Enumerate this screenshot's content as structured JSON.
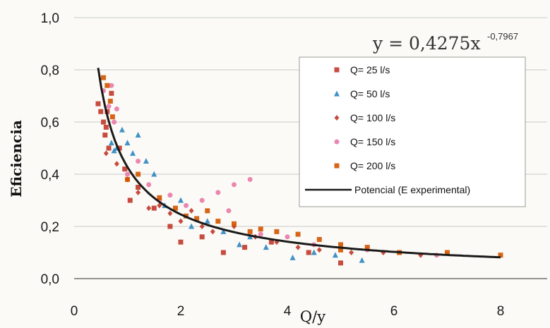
{
  "chart_data": {
    "type": "scatter",
    "xlabel": "Q/y",
    "ylabel": "Eficiencia",
    "xlim": [
      0,
      8.5
    ],
    "ylim": [
      0,
      1.0
    ],
    "x_ticks": [
      "0",
      "2",
      "4",
      "6",
      "8"
    ],
    "y_ticks": [
      "0,0",
      "0,2",
      "0,4",
      "0,6",
      "0,8",
      "1,0"
    ],
    "grid": "horizontal",
    "legend_position": "top-right",
    "equation": {
      "base": "y = 0,4275x",
      "exponent": "-0,7967"
    },
    "series": [
      {
        "name": "Q= 25 l/s",
        "marker": "square",
        "color": "#c0392b",
        "points": [
          [
            0.45,
            0.67
          ],
          [
            0.5,
            0.64
          ],
          [
            0.55,
            0.6
          ],
          [
            0.58,
            0.55
          ],
          [
            0.6,
            0.58
          ],
          [
            0.62,
            0.64
          ],
          [
            0.65,
            0.5
          ],
          [
            0.7,
            0.71
          ],
          [
            0.85,
            0.5
          ],
          [
            0.95,
            0.42
          ],
          [
            1.05,
            0.3
          ],
          [
            1.2,
            0.35
          ],
          [
            1.5,
            0.27
          ],
          [
            1.8,
            0.2
          ],
          [
            2.0,
            0.14
          ],
          [
            2.4,
            0.16
          ],
          [
            2.8,
            0.1
          ],
          [
            3.2,
            0.12
          ],
          [
            3.7,
            0.14
          ],
          [
            4.4,
            0.1
          ],
          [
            5.0,
            0.06
          ]
        ]
      },
      {
        "name": "Q= 50 l/s",
        "marker": "triangle",
        "color": "#2e86c1",
        "points": [
          [
            0.7,
            0.52
          ],
          [
            0.75,
            0.49
          ],
          [
            0.8,
            0.5
          ],
          [
            0.9,
            0.57
          ],
          [
            1.0,
            0.52
          ],
          [
            1.1,
            0.48
          ],
          [
            1.2,
            0.55
          ],
          [
            1.35,
            0.45
          ],
          [
            1.5,
            0.4
          ],
          [
            1.7,
            0.28
          ],
          [
            2.0,
            0.3
          ],
          [
            2.2,
            0.2
          ],
          [
            2.5,
            0.22
          ],
          [
            2.8,
            0.18
          ],
          [
            3.1,
            0.13
          ],
          [
            3.3,
            0.16
          ],
          [
            3.6,
            0.12
          ],
          [
            4.1,
            0.08
          ],
          [
            4.5,
            0.1
          ],
          [
            4.9,
            0.09
          ],
          [
            5.4,
            0.07
          ]
        ]
      },
      {
        "name": "Q= 100 l/s",
        "marker": "diamond",
        "color": "#c0392b",
        "points": [
          [
            0.6,
            0.48
          ],
          [
            0.8,
            0.44
          ],
          [
            1.0,
            0.38
          ],
          [
            1.2,
            0.33
          ],
          [
            1.4,
            0.27
          ],
          [
            1.6,
            0.28
          ],
          [
            1.8,
            0.25
          ],
          [
            2.0,
            0.22
          ],
          [
            2.2,
            0.26
          ],
          [
            2.4,
            0.2
          ],
          [
            2.6,
            0.18
          ],
          [
            3.0,
            0.2
          ],
          [
            3.4,
            0.16
          ],
          [
            3.8,
            0.14
          ],
          [
            4.2,
            0.12
          ],
          [
            4.6,
            0.11
          ],
          [
            5.2,
            0.1
          ],
          [
            5.8,
            0.1
          ],
          [
            6.5,
            0.09
          ]
        ]
      },
      {
        "name": "Q= 150 l/s",
        "marker": "circle",
        "color": "#e879a8",
        "points": [
          [
            0.55,
            0.72
          ],
          [
            0.65,
            0.66
          ],
          [
            0.7,
            0.74
          ],
          [
            0.75,
            0.6
          ],
          [
            0.8,
            0.65
          ],
          [
            1.0,
            0.4
          ],
          [
            1.2,
            0.45
          ],
          [
            1.4,
            0.36
          ],
          [
            1.6,
            0.3
          ],
          [
            1.8,
            0.32
          ],
          [
            2.1,
            0.28
          ],
          [
            2.4,
            0.3
          ],
          [
            2.7,
            0.33
          ],
          [
            3.0,
            0.36
          ],
          [
            3.3,
            0.38
          ],
          [
            2.9,
            0.26
          ],
          [
            3.5,
            0.17
          ],
          [
            4.0,
            0.16
          ],
          [
            4.5,
            0.13
          ],
          [
            5.5,
            0.11
          ],
          [
            6.1,
            0.1
          ],
          [
            6.8,
            0.09
          ]
        ]
      },
      {
        "name": "Q= 200 l/s",
        "marker": "square",
        "color": "#d35400",
        "points": [
          [
            0.55,
            0.77
          ],
          [
            0.62,
            0.74
          ],
          [
            0.68,
            0.68
          ],
          [
            0.72,
            0.62
          ],
          [
            1.0,
            0.38
          ],
          [
            1.2,
            0.4
          ],
          [
            1.6,
            0.31
          ],
          [
            1.9,
            0.27
          ],
          [
            2.1,
            0.24
          ],
          [
            2.3,
            0.23
          ],
          [
            2.5,
            0.26
          ],
          [
            2.7,
            0.22
          ],
          [
            3.0,
            0.21
          ],
          [
            3.3,
            0.18
          ],
          [
            3.5,
            0.19
          ],
          [
            3.8,
            0.18
          ],
          [
            4.2,
            0.17
          ],
          [
            4.6,
            0.15
          ],
          [
            5.0,
            0.13
          ],
          [
            5.0,
            0.11
          ],
          [
            5.5,
            0.12
          ],
          [
            6.1,
            0.1
          ],
          [
            7.0,
            0.1
          ],
          [
            8.0,
            0.09
          ]
        ]
      },
      {
        "name": "Potencial (E experimental)",
        "type": "line",
        "color": "#1a1a1a",
        "function": "power",
        "coefficient": 0.4275,
        "exponent": -0.7967,
        "x_range": [
          0.45,
          8.0
        ]
      }
    ]
  }
}
